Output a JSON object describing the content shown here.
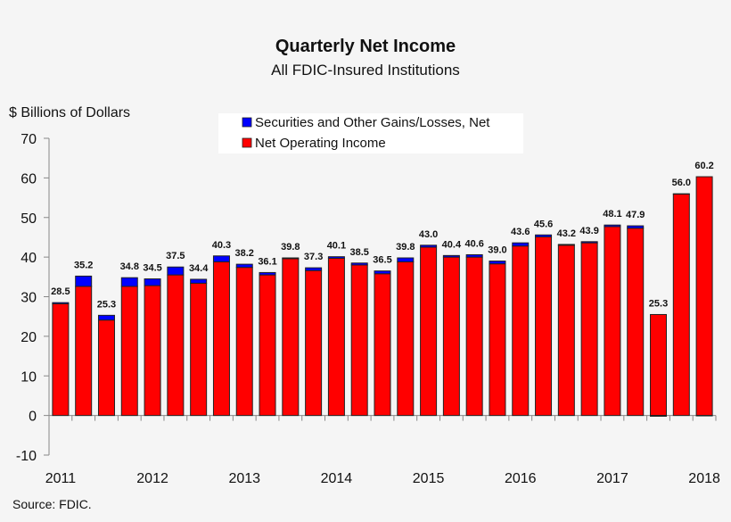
{
  "chart_data": {
    "type": "bar",
    "stacked": true,
    "title": "Quarterly Net Income",
    "subtitle": "All FDIC-Insured Institutions",
    "ylabel": "$ Billions of Dollars",
    "ylim": [
      -10,
      70
    ],
    "yticks": [
      -10,
      0,
      10,
      20,
      30,
      40,
      50,
      60,
      70
    ],
    "xtick_labels": [
      "2011",
      "2012",
      "2013",
      "2014",
      "2015",
      "2016",
      "2017",
      "2018"
    ],
    "grid": false,
    "legend_placement": "top-center",
    "source": "Source:  FDIC.",
    "categories": [
      "2011Q1",
      "2011Q2",
      "2011Q3",
      "2011Q4",
      "2012Q1",
      "2012Q2",
      "2012Q3",
      "2012Q4",
      "2013Q1",
      "2013Q2",
      "2013Q3",
      "2013Q4",
      "2014Q1",
      "2014Q2",
      "2014Q3",
      "2014Q4",
      "2015Q1",
      "2015Q2",
      "2015Q3",
      "2015Q4",
      "2016Q1",
      "2016Q2",
      "2016Q3",
      "2016Q4",
      "2017Q1",
      "2017Q2",
      "2017Q3",
      "2017Q4",
      "2018Q1"
    ],
    "totals": [
      "28.5",
      "35.2",
      "25.3",
      "34.8",
      "34.5",
      "37.5",
      "34.4",
      "40.3",
      "38.2",
      "36.1",
      "39.8",
      "37.3",
      "40.1",
      "38.5",
      "36.5",
      "39.8",
      "43.0",
      "40.4",
      "40.6",
      "39.0",
      "43.6",
      "45.6",
      "43.2",
      "43.9",
      "48.1",
      "47.9",
      "25.3",
      "56.0",
      "60.2"
    ],
    "series": [
      {
        "name": "Net Operating Income",
        "color": "#ff0000",
        "values": [
          28.2,
          32.6,
          24.1,
          32.6,
          32.8,
          35.5,
          33.4,
          38.8,
          37.4,
          35.5,
          39.6,
          36.6,
          39.7,
          38.0,
          35.8,
          38.8,
          42.5,
          40.0,
          40.0,
          38.3,
          42.8,
          45.1,
          43.0,
          43.6,
          47.7,
          47.3,
          25.5,
          55.9,
          60.3
        ]
      },
      {
        "name": "Securities and Other Gains/Losses, Net",
        "color": "#0000ff",
        "values": [
          0.3,
          2.6,
          1.2,
          2.2,
          1.7,
          2.0,
          1.0,
          1.5,
          0.8,
          0.6,
          0.2,
          0.7,
          0.4,
          0.5,
          0.7,
          1.0,
          0.5,
          0.4,
          0.6,
          0.7,
          0.8,
          0.5,
          0.2,
          0.3,
          0.4,
          0.6,
          -0.2,
          0.1,
          -0.1
        ]
      }
    ]
  }
}
